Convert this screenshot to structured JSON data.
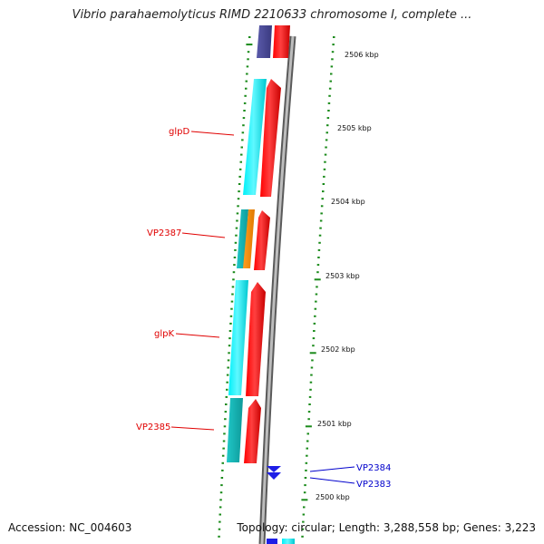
{
  "title": "Vibrio parahaemolyticus RIMD 2210633 chromosome I, complete ...",
  "footer": {
    "accession": "Accession: NC_004603",
    "summary": "Topology: circular; Length: 3,288,558 bp; Genes: 3,223"
  },
  "scale_labels": [
    "2506 kbp",
    "2505 kbp",
    "2504 kbp",
    "2503 kbp",
    "2502 kbp",
    "2501 kbp",
    "2500 kbp"
  ],
  "gene_labels": [
    {
      "text": "glpD",
      "color": "#e00000"
    },
    {
      "text": "VP2387",
      "color": "#e00000"
    },
    {
      "text": "glpK",
      "color": "#e00000"
    },
    {
      "text": "VP2385",
      "color": "#e00000"
    },
    {
      "text": "VP2384",
      "color": "#0000cc"
    },
    {
      "text": "VP2383",
      "color": "#0000cc"
    }
  ],
  "colors": {
    "gene_red": "#ff0000",
    "gene_cyan": "#00e5ee",
    "gene_teal": "#13b5b5",
    "gene_orange": "#ff8c00",
    "gene_purple": "#4b4b9a",
    "gene_blue": "#1e1ee6",
    "backbone": "#8c8c8c",
    "tick_green": "#1a8a1a",
    "label_red": "#e00000",
    "label_blue": "#0000cc"
  }
}
